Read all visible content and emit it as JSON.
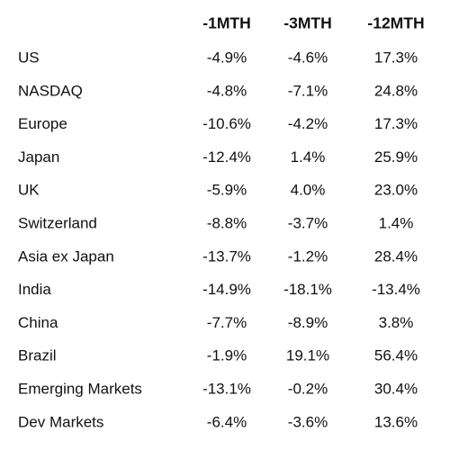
{
  "table": {
    "header": [
      "-1MTH",
      "-3MTH",
      "-12MTH"
    ],
    "rows": [
      [
        "US",
        "-4.9%",
        "-4.6%",
        "17.3%"
      ],
      [
        "NASDAQ",
        "-4.8%",
        "-7.1%",
        "24.8%"
      ],
      [
        "Europe",
        "-10.6%",
        "-4.2%",
        "17.3%"
      ],
      [
        "Japan",
        "-12.4%",
        "1.4%",
        "25.9%"
      ],
      [
        "UK",
        "-5.9%",
        "4.0%",
        "23.0%"
      ],
      [
        "Switzerland",
        "-8.8%",
        "-3.7%",
        "1.4%"
      ],
      [
        "Asia ex Japan",
        "-13.7%",
        "-1.2%",
        "28.4%"
      ],
      [
        "India",
        "-14.9%",
        "-18.1%",
        "-13.4%"
      ],
      [
        "China",
        "-7.7%",
        "-8.9%",
        "3.8%"
      ],
      [
        "Brazil",
        "-1.9%",
        "19.1%",
        "56.4%"
      ],
      [
        "Emerging Markets",
        "-13.1%",
        "-0.2%",
        "30.4%"
      ],
      [
        "Dev Markets",
        "-6.4%",
        "-3.6%",
        "13.6%"
      ]
    ]
  }
}
